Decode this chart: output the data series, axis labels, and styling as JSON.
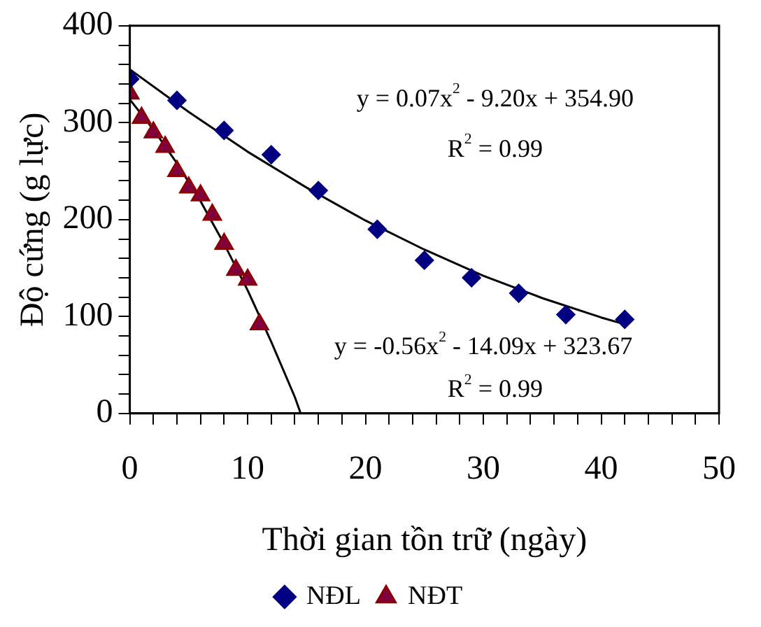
{
  "chart_data": {
    "type": "scatter",
    "xlabel": "Thời gian tồn trữ (ngày)",
    "ylabel": "Độ cứng (g lực)",
    "xlim": [
      0,
      50
    ],
    "xticks": [
      0,
      {
        "value": 2,
        "label": null
      },
      {
        "value": 4,
        "label": null
      },
      {
        "value": 6,
        "label": null
      },
      {
        "value": 8,
        "label": null
      },
      10,
      {
        "value": 12,
        "label": null
      },
      {
        "value": 14,
        "label": null
      },
      {
        "value": 16,
        "label": null
      },
      {
        "value": 18,
        "label": null
      },
      20,
      {
        "value": 22,
        "label": null
      },
      {
        "value": 24,
        "label": null
      },
      {
        "value": 26,
        "label": null
      },
      {
        "value": 28,
        "label": null
      },
      30,
      {
        "value": 32,
        "label": null
      },
      {
        "value": 34,
        "label": null
      },
      {
        "value": 36,
        "label": null
      },
      {
        "value": 38,
        "label": null
      },
      40,
      {
        "value": 42,
        "label": null
      },
      {
        "value": 44,
        "label": null
      },
      {
        "value": 46,
        "label": null
      },
      {
        "value": 48,
        "label": null
      },
      50
    ],
    "ylim": [
      0,
      400
    ],
    "yticks": [
      0,
      {
        "value": 20,
        "label": null
      },
      {
        "value": 40,
        "label": null
      },
      {
        "value": 60,
        "label": null
      },
      {
        "value": 80,
        "label": null
      },
      100,
      {
        "value": 120,
        "label": null
      },
      {
        "value": 140,
        "label": null
      },
      {
        "value": 160,
        "label": null
      },
      {
        "value": 180,
        "label": null
      },
      200,
      {
        "value": 220,
        "label": null
      },
      {
        "value": 240,
        "label": null
      },
      {
        "value": 260,
        "label": null
      },
      {
        "value": 280,
        "label": null
      },
      300,
      {
        "value": 320,
        "label": null
      },
      {
        "value": 340,
        "label": null
      },
      {
        "value": 360,
        "label": null
      },
      {
        "value": 380,
        "label": null
      },
      400
    ],
    "grid": false,
    "legend": "bottom",
    "series": [
      {
        "name": "NĐL",
        "type": "scatter",
        "marker": "diamond",
        "color": "#000080",
        "x": [
          0,
          4,
          8,
          12,
          16,
          21,
          25,
          29,
          33,
          37,
          42
        ],
        "values": [
          345,
          323,
          292,
          267,
          230,
          190,
          158,
          140,
          124,
          102,
          97
        ]
      },
      {
        "name": "NĐT",
        "type": "scatter",
        "marker": "triangle",
        "color": "#800040",
        "x": [
          0,
          1,
          2,
          3,
          4,
          5,
          6,
          7,
          8,
          9,
          10,
          11
        ],
        "values": [
          330,
          305,
          290,
          275,
          250,
          233,
          225,
          205,
          175,
          148,
          138,
          92
        ]
      },
      {
        "type": "line",
        "marker": "none",
        "color": "#000000",
        "x": [
          0,
          5,
          10,
          15,
          20,
          25,
          30,
          35,
          40,
          42
        ],
        "values": [
          355,
          311,
          270,
          233,
          199,
          169,
          142,
          119,
          99,
          92
        ]
      },
      {
        "type": "line",
        "marker": "none",
        "color": "#000000",
        "x": [
          0,
          2,
          4,
          6,
          8,
          10,
          12,
          14,
          14.5
        ],
        "values": [
          324,
          293,
          258,
          219,
          175,
          127,
          74,
          17,
          0
        ]
      }
    ],
    "annotations": [
      "y = 0.07x$^{2}$ - 9.20x + 354.90",
      "R$^{2}$ = 0.99",
      "y = -0.56x$^{2}$ - 14.09x + 323.67",
      "R$^{2}$ = 0.99"
    ]
  }
}
